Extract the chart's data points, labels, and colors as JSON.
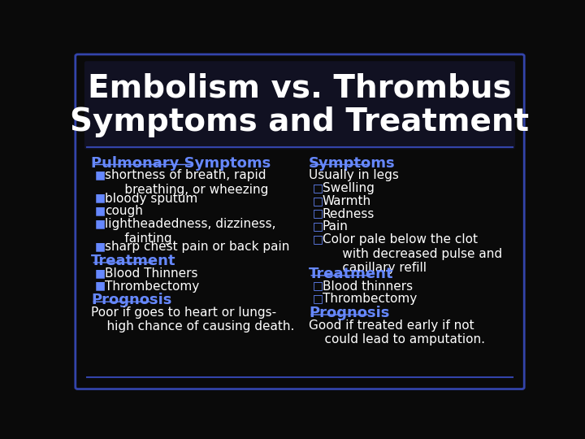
{
  "title_line1": "Embolism vs. Thrombus",
  "title_line2": "Symptoms and Treatment",
  "bg_color": "#0a0a0a",
  "title_color": "#ffffff",
  "heading_color": "#6688ff",
  "text_color": "#ffffff",
  "bullet_color": "#6688ff",
  "border_color": "#3344aa",
  "title_bg_color": "#111122",
  "title_fontsize": 28,
  "heading_fontsize": 13,
  "body_fontsize": 11,
  "left_col": {
    "heading1": "Pulmonary Symptoms",
    "items1": [
      "shortness of breath, rapid\n     breathing, or wheezing",
      "bloody sputum",
      "cough",
      "lightheadedness, dizziness,\n     fainting",
      "sharp chest pain or back pain"
    ],
    "heading2": "Treatment",
    "items2": [
      "Blood Thinners",
      "Thrombectomy"
    ],
    "heading3": "Prognosis",
    "prognosis": "Poor if goes to heart or lungs-\n    high chance of causing death."
  },
  "right_col": {
    "heading1": "Symptoms",
    "subheading1": "Usually in legs",
    "items1": [
      "Swelling",
      "Warmth",
      "Redness",
      "Pain",
      "Color pale below the clot\n     with decreased pulse and\n     capillary refill"
    ],
    "heading2": "Treatment",
    "items2": [
      "Blood thinners",
      "Thrombectomy"
    ],
    "heading3": "Prognosis",
    "prognosis": "Good if treated early if not\n    could lead to amputation."
  }
}
